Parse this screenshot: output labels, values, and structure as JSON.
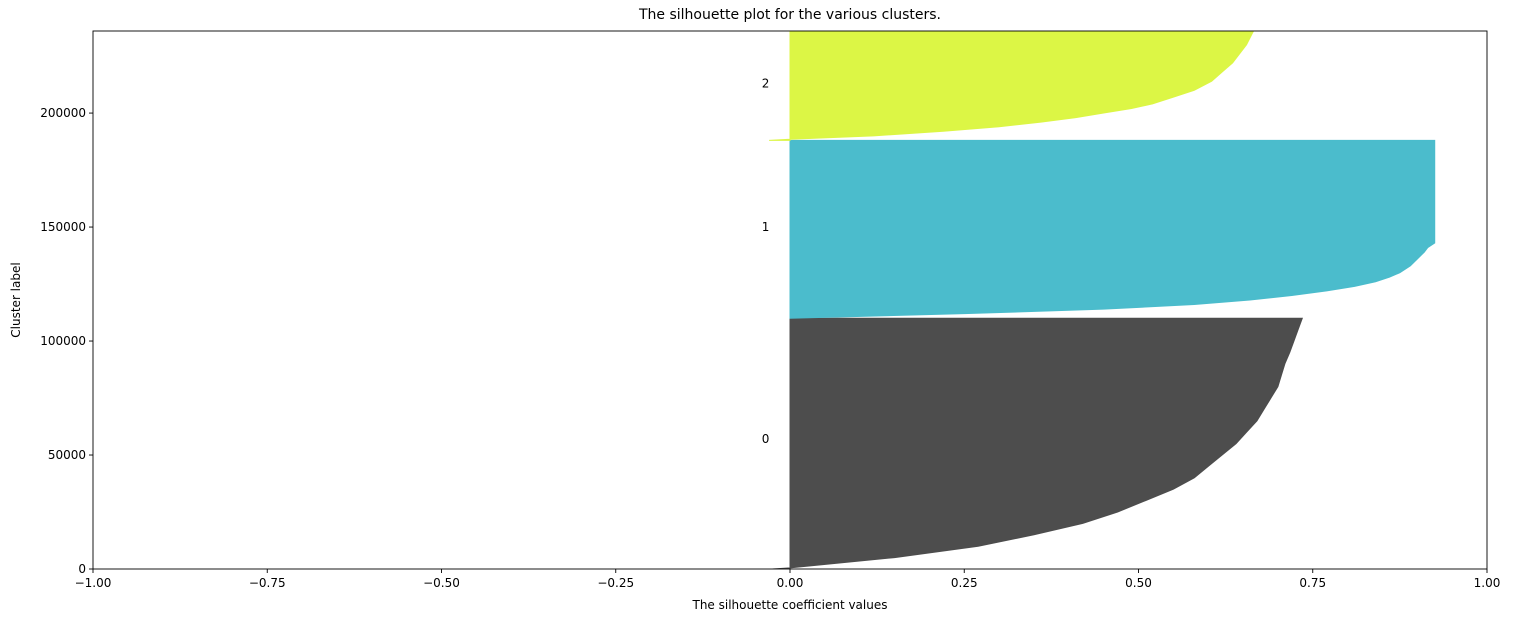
{
  "chart_data": {
    "type": "area",
    "title": "The silhouette plot for the various clusters.",
    "xlabel": "The silhouette coefficient values",
    "ylabel": "Cluster label",
    "xlim": [
      -1.0,
      1.0
    ],
    "ylim": [
      0,
      236000
    ],
    "x_ticks": [
      "−1.00",
      "−0.75",
      "−0.50",
      "−0.25",
      "0.00",
      "0.25",
      "0.50",
      "0.75",
      "1.00"
    ],
    "x_tick_values": [
      -1.0,
      -0.75,
      -0.5,
      -0.25,
      0.0,
      0.25,
      0.5,
      0.75,
      1.0
    ],
    "y_ticks": [
      "0",
      "50000",
      "100000",
      "150000",
      "200000"
    ],
    "y_tick_values": [
      0,
      50000,
      100000,
      150000,
      200000
    ],
    "grid": false,
    "series": [
      {
        "cluster": "0",
        "y_range": [
          0,
          110000
        ],
        "label_y": 57000,
        "color": "#4d4d4d",
        "silhouette_profile": [
          {
            "y": 0,
            "x": -0.025
          },
          {
            "y": 500,
            "x": 0.0
          },
          {
            "y": 5000,
            "x": 0.15
          },
          {
            "y": 10000,
            "x": 0.27
          },
          {
            "y": 15000,
            "x": 0.35
          },
          {
            "y": 20000,
            "x": 0.42
          },
          {
            "y": 25000,
            "x": 0.47
          },
          {
            "y": 30000,
            "x": 0.51
          },
          {
            "y": 35000,
            "x": 0.55
          },
          {
            "y": 40000,
            "x": 0.58
          },
          {
            "y": 45000,
            "x": 0.6
          },
          {
            "y": 50000,
            "x": 0.62
          },
          {
            "y": 55000,
            "x": 0.64
          },
          {
            "y": 60000,
            "x": 0.655
          },
          {
            "y": 65000,
            "x": 0.67
          },
          {
            "y": 70000,
            "x": 0.68
          },
          {
            "y": 75000,
            "x": 0.69
          },
          {
            "y": 80000,
            "x": 0.7
          },
          {
            "y": 85000,
            "x": 0.705
          },
          {
            "y": 90000,
            "x": 0.71
          },
          {
            "y": 95000,
            "x": 0.717
          },
          {
            "y": 100000,
            "x": 0.723
          },
          {
            "y": 105000,
            "x": 0.729
          },
          {
            "y": 110000,
            "x": 0.735
          }
        ]
      },
      {
        "cluster": "1",
        "y_range": [
          110000,
          188000
        ],
        "label_y": 150000,
        "color": "#4bbccc",
        "silhouette_profile": [
          {
            "y": 110000,
            "x": 0.0
          },
          {
            "y": 112000,
            "x": 0.25
          },
          {
            "y": 114000,
            "x": 0.45
          },
          {
            "y": 116000,
            "x": 0.58
          },
          {
            "y": 118000,
            "x": 0.66
          },
          {
            "y": 120000,
            "x": 0.72
          },
          {
            "y": 122000,
            "x": 0.77
          },
          {
            "y": 124000,
            "x": 0.81
          },
          {
            "y": 126000,
            "x": 0.84
          },
          {
            "y": 128000,
            "x": 0.86
          },
          {
            "y": 130000,
            "x": 0.875
          },
          {
            "y": 133000,
            "x": 0.89
          },
          {
            "y": 136000,
            "x": 0.9
          },
          {
            "y": 139000,
            "x": 0.91
          },
          {
            "y": 141000,
            "x": 0.915
          },
          {
            "y": 143000,
            "x": 0.925
          },
          {
            "y": 160000,
            "x": 0.925
          },
          {
            "y": 188000,
            "x": 0.925
          }
        ]
      },
      {
        "cluster": "2",
        "y_range": [
          188000,
          236000
        ],
        "label_y": 213000,
        "color": "#dcf645",
        "silhouette_profile": [
          {
            "y": 188000,
            "x": -0.03
          },
          {
            "y": 188500,
            "x": 0.0
          },
          {
            "y": 190000,
            "x": 0.12
          },
          {
            "y": 192000,
            "x": 0.22
          },
          {
            "y": 194000,
            "x": 0.3
          },
          {
            "y": 196000,
            "x": 0.36
          },
          {
            "y": 198000,
            "x": 0.41
          },
          {
            "y": 200000,
            "x": 0.45
          },
          {
            "y": 202000,
            "x": 0.49
          },
          {
            "y": 204000,
            "x": 0.52
          },
          {
            "y": 207000,
            "x": 0.55
          },
          {
            "y": 210000,
            "x": 0.58
          },
          {
            "y": 214000,
            "x": 0.605
          },
          {
            "y": 218000,
            "x": 0.62
          },
          {
            "y": 222000,
            "x": 0.635
          },
          {
            "y": 226000,
            "x": 0.645
          },
          {
            "y": 230000,
            "x": 0.655
          },
          {
            "y": 236000,
            "x": 0.665
          }
        ]
      }
    ]
  }
}
